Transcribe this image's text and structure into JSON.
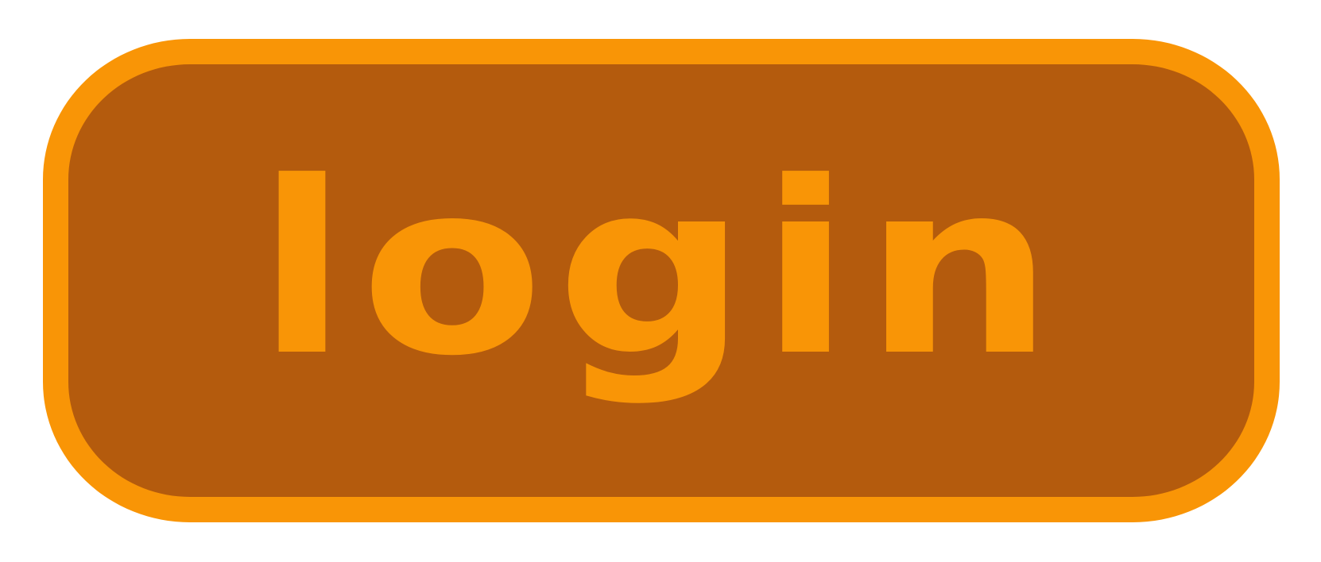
{
  "login_button": {
    "label": "login"
  },
  "colors": {
    "border": "#f99506",
    "fill": "#b45b0d",
    "text": "#f99506",
    "background": "#ffffff"
  }
}
